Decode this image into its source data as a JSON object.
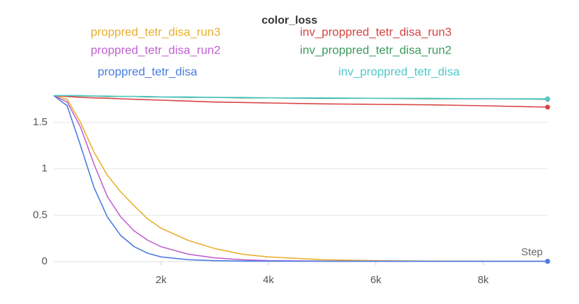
{
  "chart_data": {
    "type": "line",
    "title": "color_loss",
    "xlabel": "Step",
    "x": [
      0,
      250,
      500,
      750,
      1000,
      1250,
      1500,
      1750,
      2000,
      2500,
      3000,
      3500,
      4000,
      5000,
      6000,
      7000,
      8000,
      9200
    ],
    "series": [
      {
        "name": "proppred_tetr_disa_run3",
        "color": "#e8b030",
        "values": [
          1.79,
          1.75,
          1.5,
          1.18,
          0.93,
          0.75,
          0.6,
          0.46,
          0.36,
          0.23,
          0.14,
          0.08,
          0.05,
          0.02,
          0.01,
          0.005,
          0.003,
          0.002
        ]
      },
      {
        "name": "inv_proppred_tetr_disa_run3",
        "color": "#d94343",
        "values": [
          1.79,
          1.78,
          1.77,
          1.765,
          1.76,
          1.755,
          1.75,
          1.745,
          1.74,
          1.73,
          1.72,
          1.715,
          1.71,
          1.7,
          1.695,
          1.69,
          1.68,
          1.665
        ]
      },
      {
        "name": "proppred_tetr_disa_run2",
        "color": "#c062d2",
        "values": [
          1.79,
          1.72,
          1.45,
          1.05,
          0.7,
          0.48,
          0.33,
          0.23,
          0.16,
          0.08,
          0.04,
          0.02,
          0.01,
          0.005,
          0.003,
          0.002,
          0.002,
          0.002
        ]
      },
      {
        "name": "inv_proppred_tetr_disa_run2",
        "color": "#3b9a5c",
        "values": [
          1.79,
          1.79,
          1.785,
          1.785,
          1.78,
          1.78,
          1.78,
          1.775,
          1.775,
          1.77,
          1.77,
          1.765,
          1.765,
          1.76,
          1.76,
          1.755,
          1.755,
          1.75
        ]
      },
      {
        "name": "proppred_tetr_disa",
        "color": "#4a7de0",
        "values": [
          1.79,
          1.68,
          1.25,
          0.8,
          0.48,
          0.28,
          0.16,
          0.09,
          0.05,
          0.02,
          0.01,
          0.005,
          0.004,
          0.003,
          0.003,
          0.003,
          0.003,
          0.003
        ]
      },
      {
        "name": "inv_proppred_tetr_disa",
        "color": "#52c8c8",
        "values": [
          1.79,
          1.79,
          1.79,
          1.785,
          1.785,
          1.78,
          1.78,
          1.78,
          1.775,
          1.775,
          1.77,
          1.77,
          1.765,
          1.765,
          1.76,
          1.76,
          1.755,
          1.755
        ]
      }
    ],
    "xlim": [
      0,
      9200
    ],
    "ylim": [
      0,
      1.86
    ],
    "xticks": [
      {
        "value": 2000,
        "label": "2k"
      },
      {
        "value": 4000,
        "label": "4k"
      },
      {
        "value": 6000,
        "label": "6k"
      },
      {
        "value": 8000,
        "label": "8k"
      }
    ],
    "yticks": [
      0,
      0.5,
      1,
      1.5
    ],
    "grid": true
  }
}
